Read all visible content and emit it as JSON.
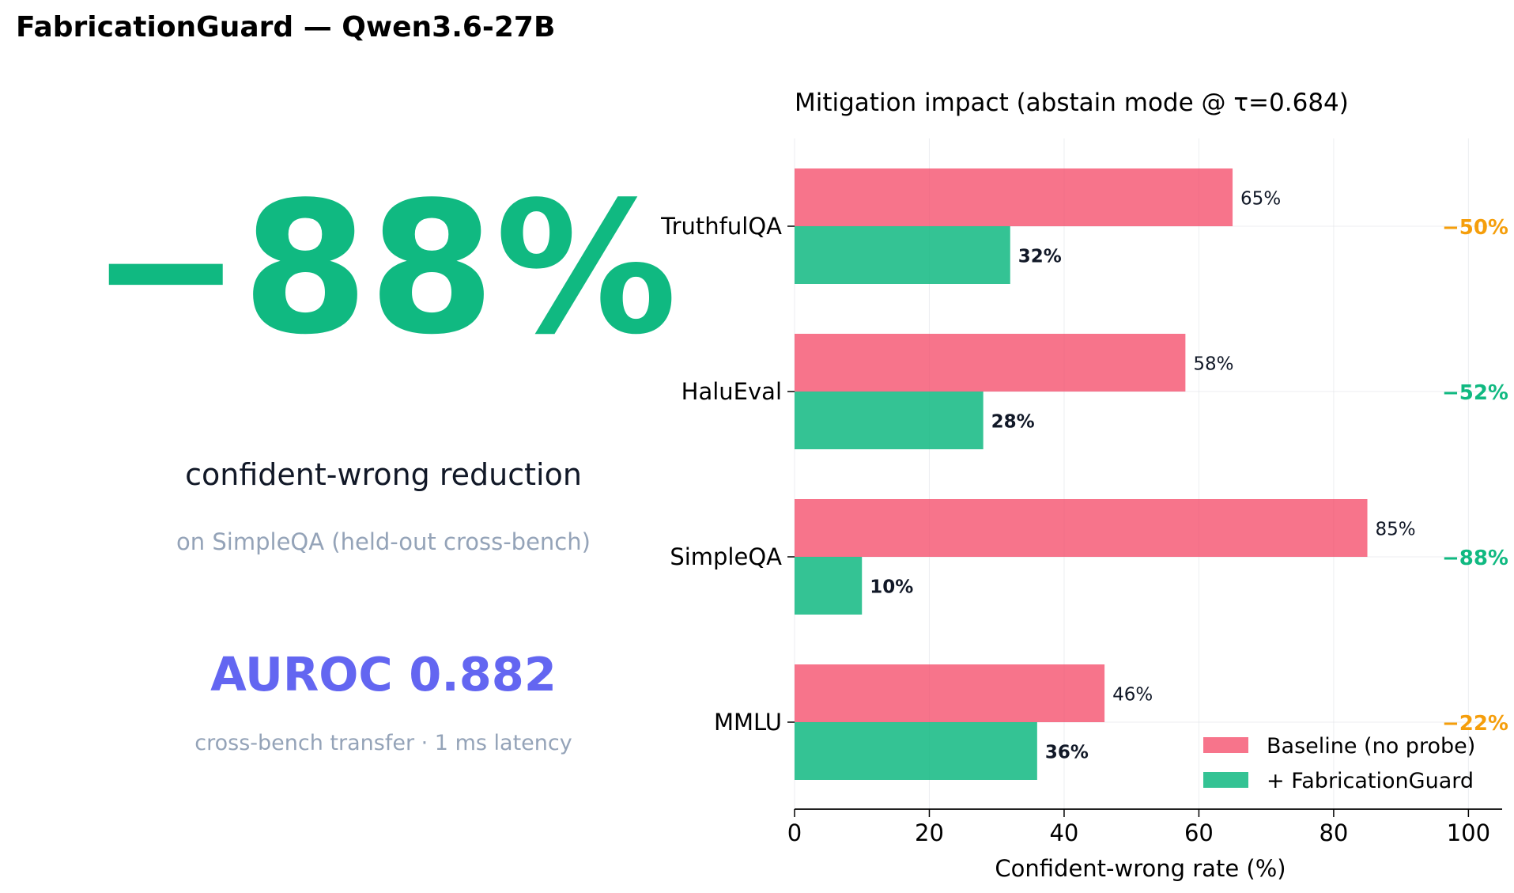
{
  "page_title": "FabricationGuard — Qwen3.6-27B",
  "headline": {
    "value": "−88%",
    "label": "confident-wrong reduction",
    "sublabel": "on SimpleQA (held-out cross-bench)"
  },
  "auroc": {
    "text": "AUROC 0.882",
    "sublabel": "cross-bench transfer · 1 ms latency"
  },
  "colors": {
    "headline": "#10b981",
    "auroc": "#6366f1",
    "baseline": "#f43f5e",
    "guard": "#10b981",
    "reduction_large": "#10b981",
    "reduction_small": "#f59e0b",
    "value_text": "#111827",
    "subtle_text": "#94a3b8"
  },
  "chart_data": {
    "type": "bar",
    "orientation": "horizontal",
    "title": "Mitigation impact (abstain mode @ τ=0.684)",
    "xlabel": "Confident-wrong rate (%)",
    "ylabel": "",
    "xlim": [
      0,
      105
    ],
    "xticks": [
      0,
      20,
      40,
      60,
      80,
      100
    ],
    "grid": true,
    "legend_position": "lower-right",
    "categories": [
      "TruthfulQA",
      "HaluEval",
      "SimpleQA",
      "MMLU"
    ],
    "series": [
      {
        "name": "Baseline (no probe)",
        "values": [
          65,
          58,
          85,
          46
        ],
        "labels": [
          "65%",
          "58%",
          "85%",
          "46%"
        ]
      },
      {
        "name": "+ FabricationGuard",
        "values": [
          32,
          28,
          10,
          36
        ],
        "labels": [
          "32%",
          "28%",
          "10%",
          "36%"
        ]
      }
    ],
    "reductions": [
      "−50%",
      "−52%",
      "−88%",
      "−22%"
    ],
    "reduction_colors": [
      "#f59e0b",
      "#10b981",
      "#10b981",
      "#f59e0b"
    ]
  }
}
